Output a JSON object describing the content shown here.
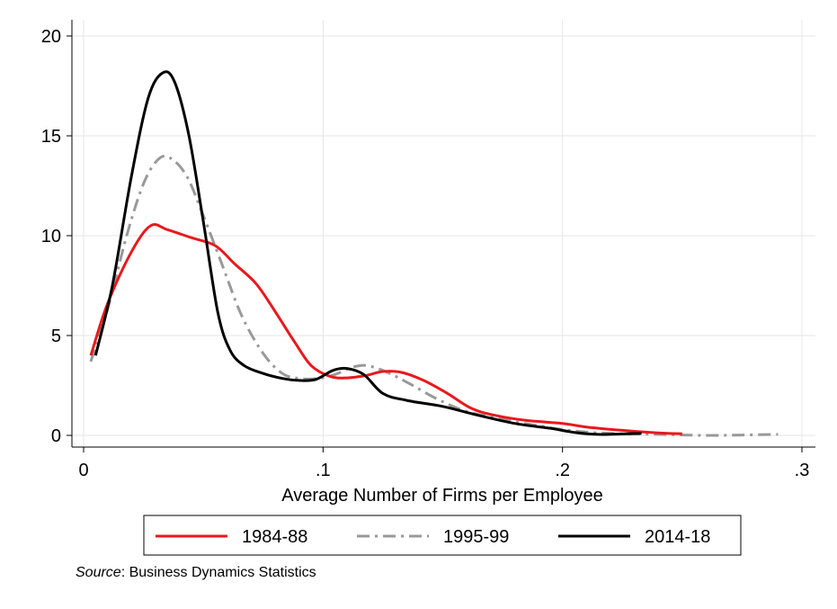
{
  "chart_data": {
    "type": "line",
    "title": "",
    "xlabel": "Average Number of Firms per Employee",
    "ylabel": "",
    "xlim": [
      0,
      0.3
    ],
    "ylim": [
      0,
      20
    ],
    "x_ticks": [
      0,
      0.1,
      0.2,
      0.3
    ],
    "x_tick_labels": [
      "0",
      ".1",
      ".2",
      ".3"
    ],
    "y_ticks": [
      0,
      5,
      10,
      15,
      20
    ],
    "y_tick_labels": [
      "0",
      "5",
      "10",
      "15",
      "20"
    ],
    "grid": true,
    "legend_position": "bottom",
    "series": [
      {
        "name": "1984-88",
        "color": "#e8191d",
        "style": "solid",
        "points": [
          [
            0.003,
            4.0
          ],
          [
            0.01,
            6.6
          ],
          [
            0.02,
            9.2
          ],
          [
            0.028,
            10.5
          ],
          [
            0.035,
            10.3
          ],
          [
            0.045,
            9.9
          ],
          [
            0.055,
            9.5
          ],
          [
            0.063,
            8.6
          ],
          [
            0.072,
            7.6
          ],
          [
            0.08,
            6.2
          ],
          [
            0.088,
            4.7
          ],
          [
            0.095,
            3.5
          ],
          [
            0.103,
            2.95
          ],
          [
            0.11,
            2.88
          ],
          [
            0.118,
            3.0
          ],
          [
            0.125,
            3.2
          ],
          [
            0.133,
            3.15
          ],
          [
            0.142,
            2.75
          ],
          [
            0.152,
            2.1
          ],
          [
            0.162,
            1.35
          ],
          [
            0.172,
            1.0
          ],
          [
            0.185,
            0.75
          ],
          [
            0.2,
            0.6
          ],
          [
            0.21,
            0.42
          ],
          [
            0.225,
            0.25
          ],
          [
            0.24,
            0.12
          ],
          [
            0.25,
            0.08
          ]
        ]
      },
      {
        "name": "1995-99",
        "color": "#999999",
        "style": "dash-dot",
        "points": [
          [
            0.003,
            3.7
          ],
          [
            0.01,
            6.3
          ],
          [
            0.018,
            10.0
          ],
          [
            0.025,
            12.6
          ],
          [
            0.031,
            13.8
          ],
          [
            0.036,
            13.9
          ],
          [
            0.043,
            13.0
          ],
          [
            0.05,
            11.0
          ],
          [
            0.058,
            8.5
          ],
          [
            0.066,
            6.0
          ],
          [
            0.075,
            4.1
          ],
          [
            0.083,
            3.1
          ],
          [
            0.09,
            2.85
          ],
          [
            0.098,
            2.85
          ],
          [
            0.105,
            3.05
          ],
          [
            0.112,
            3.4
          ],
          [
            0.118,
            3.5
          ],
          [
            0.126,
            3.2
          ],
          [
            0.136,
            2.6
          ],
          [
            0.148,
            1.8
          ],
          [
            0.16,
            1.2
          ],
          [
            0.175,
            0.8
          ],
          [
            0.19,
            0.48
          ],
          [
            0.205,
            0.22
          ],
          [
            0.22,
            0.1
          ],
          [
            0.24,
            0.05
          ],
          [
            0.26,
            0.0
          ],
          [
            0.275,
            0.02
          ],
          [
            0.29,
            0.05
          ]
        ]
      },
      {
        "name": "2014-18",
        "color": "#000000",
        "style": "solid",
        "points": [
          [
            0.005,
            4.0
          ],
          [
            0.012,
            7.5
          ],
          [
            0.02,
            13.0
          ],
          [
            0.027,
            16.9
          ],
          [
            0.033,
            18.15
          ],
          [
            0.038,
            17.7
          ],
          [
            0.044,
            15.0
          ],
          [
            0.05,
            10.7
          ],
          [
            0.056,
            6.2
          ],
          [
            0.061,
            4.3
          ],
          [
            0.067,
            3.5
          ],
          [
            0.075,
            3.1
          ],
          [
            0.083,
            2.85
          ],
          [
            0.09,
            2.75
          ],
          [
            0.097,
            2.8
          ],
          [
            0.104,
            3.25
          ],
          [
            0.11,
            3.35
          ],
          [
            0.117,
            3.05
          ],
          [
            0.125,
            2.1
          ],
          [
            0.135,
            1.75
          ],
          [
            0.15,
            1.45
          ],
          [
            0.165,
            1.0
          ],
          [
            0.18,
            0.6
          ],
          [
            0.195,
            0.35
          ],
          [
            0.205,
            0.15
          ],
          [
            0.215,
            0.05
          ],
          [
            0.225,
            0.07
          ],
          [
            0.233,
            0.1
          ]
        ]
      }
    ]
  },
  "source_note": {
    "label": "Source",
    "text": ": Business Dynamics Statistics"
  }
}
